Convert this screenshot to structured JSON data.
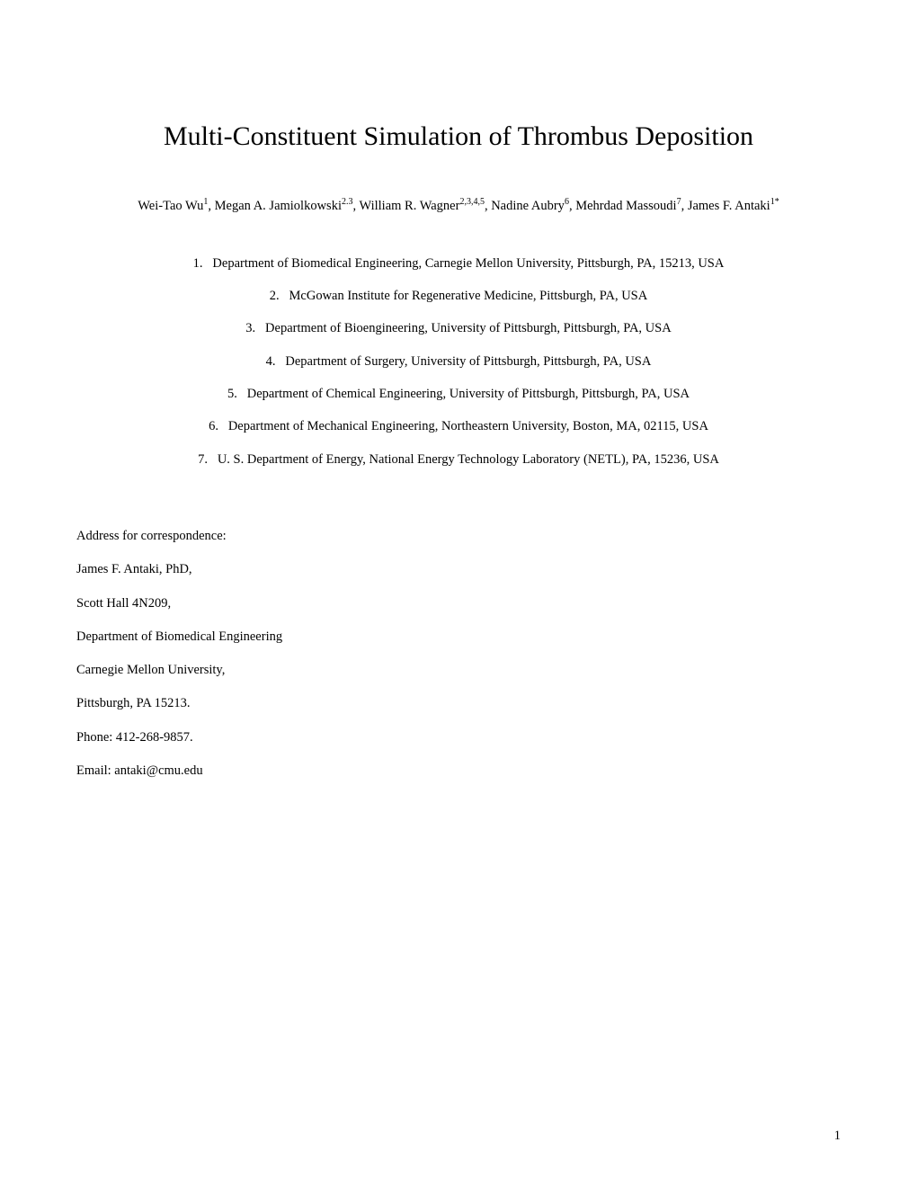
{
  "title": "Multi-Constituent Simulation of Thrombus Deposition",
  "authors": [
    {
      "name": "Wei-Tao Wu",
      "sup": "1"
    },
    {
      "name": "Megan A. Jamiolkowski",
      "sup": "2.3"
    },
    {
      "name": "William R. Wagner",
      "sup": "2,3,4,5"
    },
    {
      "name": "Nadine Aubry",
      "sup": "6"
    },
    {
      "name": "Mehrdad Massoudi",
      "sup": "7"
    },
    {
      "name": "James F. Antaki",
      "sup": "1*"
    }
  ],
  "affiliations": [
    {
      "num": "1.",
      "text": "Department of Biomedical Engineering, Carnegie Mellon University, Pittsburgh, PA, 15213, USA"
    },
    {
      "num": "2.",
      "text": "McGowan Institute for Regenerative Medicine, Pittsburgh, PA, USA"
    },
    {
      "num": "3.",
      "text": "Department of Bioengineering, University of Pittsburgh, Pittsburgh, PA, USA"
    },
    {
      "num": "4.",
      "text": "Department of Surgery, University of Pittsburgh, Pittsburgh, PA, USA"
    },
    {
      "num": "5.",
      "text": "Department of Chemical Engineering, University of Pittsburgh, Pittsburgh, PA, USA"
    },
    {
      "num": "6.",
      "text": "Department of Mechanical Engineering, Northeastern University, Boston, MA, 02115, USA"
    },
    {
      "num": "7.",
      "text": "U. S. Department of Energy, National Energy Technology Laboratory (NETL), PA, 15236, USA"
    }
  ],
  "correspondence": {
    "heading": "Address for correspondence:",
    "name": "James F. Antaki, PhD,",
    "room": "Scott Hall 4N209,",
    "dept": "Department of Biomedical Engineering",
    "university": "Carnegie Mellon University,",
    "city": "Pittsburgh, PA 15213.",
    "phone": "Phone: 412-268-9857.",
    "email": "Email: antaki@cmu.edu"
  },
  "page_number": "1"
}
